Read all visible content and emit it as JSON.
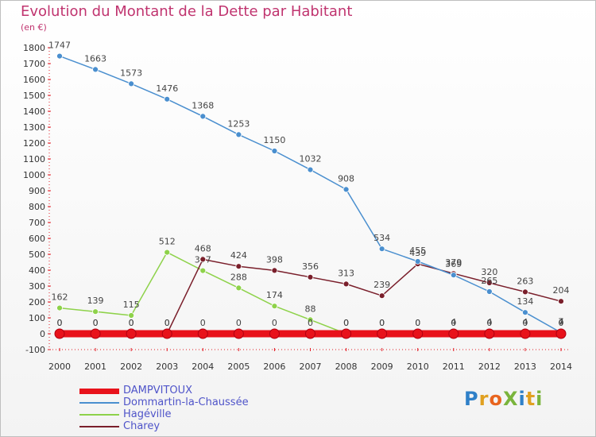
{
  "chart_data": {
    "type": "line",
    "title": "Evolution du Montant de la Dette par Habitant",
    "subtitle": "(en €)",
    "x": [
      "2000",
      "2001",
      "2002",
      "2003",
      "2004",
      "2005",
      "2006",
      "2007",
      "2008",
      "2009",
      "2010",
      "2011",
      "2012",
      "2013",
      "2014"
    ],
    "ylim": [
      -100,
      1800
    ],
    "yticks": [
      -100,
      0,
      100,
      200,
      300,
      400,
      500,
      600,
      700,
      800,
      900,
      1000,
      1100,
      1200,
      1300,
      1400,
      1500,
      1600,
      1700,
      1800
    ],
    "grid": false,
    "legend_position": "bottom-left",
    "series": [
      {
        "name": "DAMPVITOUX",
        "color": "#e8121b",
        "values": [
          0,
          0,
          0,
          0,
          0,
          0,
          0,
          0,
          0,
          0,
          0,
          0,
          0,
          0,
          0
        ],
        "labels": [
          "0",
          "0",
          "0",
          "0",
          "0",
          "0",
          "0",
          "0",
          "0",
          "0",
          "0",
          "0",
          "0",
          "0",
          "0"
        ]
      },
      {
        "name": "Dommartin-la-Chaussée",
        "color": "#4a8fcf",
        "values": [
          1747,
          1663,
          1573,
          1476,
          1368,
          1253,
          1150,
          1032,
          908,
          534,
          455,
          369,
          265,
          134,
          7
        ],
        "labels": [
          "1747",
          "1663",
          "1573",
          "1476",
          "1368",
          "1253",
          "1150",
          "1032",
          "908",
          "534",
          "455",
          "369",
          "265",
          "134",
          "7"
        ]
      },
      {
        "name": "Hagéville",
        "color": "#8ed24a",
        "values": [
          162,
          139,
          115,
          512,
          397,
          288,
          174,
          88,
          0,
          0,
          0,
          4,
          4,
          4,
          4
        ],
        "labels": [
          "162",
          "139",
          "115",
          "512",
          "397",
          "288",
          "174",
          "88",
          "0",
          "0",
          "0",
          "4",
          "4",
          "4",
          "4"
        ]
      },
      {
        "name": "Charey",
        "color": "#7a1f2b",
        "values": [
          0,
          0,
          0,
          0,
          468,
          424,
          398,
          356,
          313,
          239,
          439,
          379,
          320,
          263,
          204
        ],
        "labels": [
          "0",
          "0",
          "0",
          "0",
          "468",
          "424",
          "398",
          "356",
          "313",
          "239",
          "439",
          "379",
          "320",
          "263",
          "204"
        ]
      }
    ]
  },
  "logo": {
    "text": "ProXiti",
    "letters": [
      "P",
      "r",
      "o",
      "X",
      "i",
      "t",
      "i"
    ]
  }
}
